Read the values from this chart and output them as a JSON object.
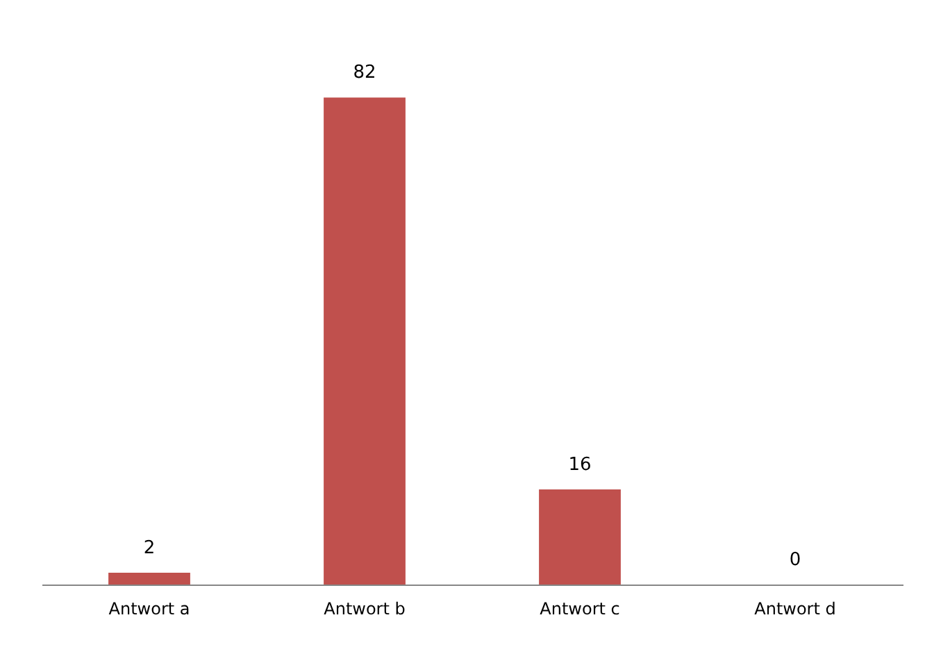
{
  "chart_data": {
    "type": "bar",
    "categories": [
      "Antwort a",
      "Antwort b",
      "Antwort c",
      "Antwort d"
    ],
    "values": [
      2,
      82,
      16,
      0
    ],
    "color": "#c0504d",
    "data_labels": true,
    "grid": false
  }
}
